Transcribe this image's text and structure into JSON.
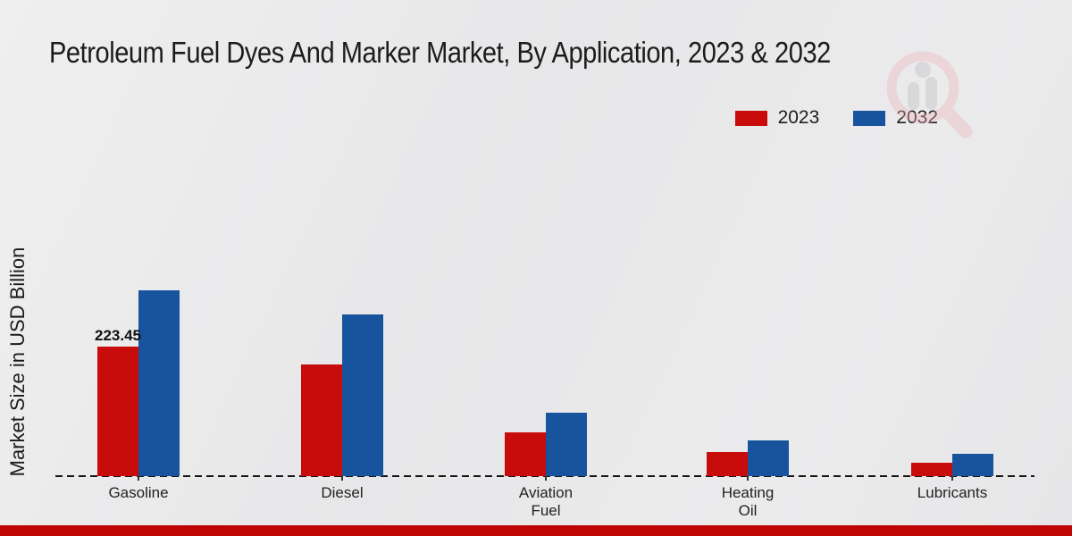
{
  "title": "Petroleum Fuel Dyes And Marker Market, By Application, 2023 & 2032",
  "y_axis_label": "Market Size in USD Billion",
  "legend": {
    "items": [
      {
        "label": "2023",
        "color": "#c80b0b"
      },
      {
        "label": "2032",
        "color": "#17549d"
      }
    ]
  },
  "watermark_icon": "magnifier-bar-chart-logo",
  "footer": {
    "color": "#bf0404"
  },
  "chart_data": {
    "type": "bar",
    "title": "Petroleum Fuel Dyes And Marker Market, By Application, 2023 & 2032",
    "xlabel": "",
    "ylabel": "Market Size in USD Billion",
    "categories": [
      "Gasoline",
      "Diesel",
      "Aviation Fuel",
      "Heating Oil",
      "Lubricants"
    ],
    "categories_wrapped": [
      [
        "Gasoline"
      ],
      [
        "Diesel"
      ],
      [
        "Aviation",
        "Fuel"
      ],
      [
        "Heating",
        "Oil"
      ],
      [
        "Lubricants"
      ]
    ],
    "series": [
      {
        "name": "2023",
        "color": "#c80b0b",
        "values": [
          223.45,
          192.5,
          75,
          42,
          23
        ]
      },
      {
        "name": "2032",
        "color": "#17549d",
        "values": [
          320.5,
          278.5,
          110,
          62,
          38
        ]
      }
    ],
    "data_labels": [
      {
        "series": "2023",
        "category": "Gasoline",
        "text": "223.45"
      }
    ],
    "ylim": [
      0,
      350
    ],
    "grid": false,
    "axis_style": "dashed-baseline-only",
    "legend_position": "top-right"
  }
}
